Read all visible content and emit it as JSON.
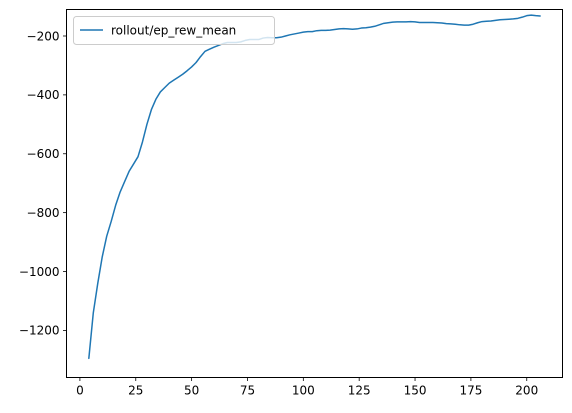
{
  "chart_data": {
    "type": "line",
    "title": "",
    "xlabel": "",
    "ylabel": "",
    "xlim": [
      -6,
      216
    ],
    "ylim": [
      -1360,
      -110
    ],
    "xticks": [
      0,
      25,
      50,
      75,
      100,
      125,
      150,
      175,
      200
    ],
    "yticks": [
      -1200,
      -1000,
      -800,
      -600,
      -400,
      -200
    ],
    "xtick_labels": [
      "0",
      "25",
      "50",
      "75",
      "100",
      "125",
      "150",
      "175",
      "200"
    ],
    "ytick_labels": [
      "−1200",
      "−1000",
      "−800",
      "−600",
      "−400",
      "−200"
    ],
    "grid": false,
    "legend_position": "top-left",
    "series": [
      {
        "name": "rollout/ep_rew_mean",
        "color": "#1f77b4",
        "x": [
          4,
          6,
          8,
          10,
          12,
          14,
          16,
          18,
          20,
          22,
          24,
          26,
          28,
          30,
          32,
          34,
          36,
          38,
          40,
          42,
          44,
          46,
          48,
          50,
          52,
          54,
          56,
          58,
          60,
          62,
          64,
          66,
          68,
          70,
          72,
          74,
          76,
          78,
          80,
          82,
          84,
          86,
          88,
          90,
          92,
          94,
          96,
          98,
          100,
          102,
          104,
          106,
          108,
          110,
          112,
          114,
          116,
          118,
          120,
          122,
          124,
          126,
          128,
          130,
          132,
          134,
          136,
          138,
          140,
          142,
          144,
          146,
          148,
          150,
          152,
          154,
          156,
          158,
          160,
          162,
          164,
          166,
          168,
          170,
          172,
          174,
          176,
          178,
          180,
          182,
          184,
          186,
          188,
          190,
          192,
          194,
          196,
          198,
          200,
          202,
          204,
          206
        ],
        "y": [
          -1295,
          -1140,
          -1040,
          -950,
          -880,
          -830,
          -775,
          -730,
          -695,
          -660,
          -635,
          -610,
          -560,
          -500,
          -450,
          -415,
          -390,
          -375,
          -360,
          -350,
          -340,
          -330,
          -318,
          -305,
          -290,
          -270,
          -252,
          -245,
          -238,
          -232,
          -226,
          -222,
          -222,
          -222,
          -220,
          -215,
          -212,
          -212,
          -212,
          -207,
          -205,
          -206,
          -206,
          -204,
          -200,
          -196,
          -193,
          -190,
          -187,
          -185,
          -185,
          -182,
          -181,
          -181,
          -180,
          -178,
          -176,
          -175,
          -176,
          -177,
          -176,
          -173,
          -172,
          -170,
          -167,
          -162,
          -157,
          -155,
          -153,
          -152,
          -152,
          -152,
          -151,
          -152,
          -154,
          -154,
          -154,
          -154,
          -155,
          -156,
          -158,
          -159,
          -160,
          -162,
          -163,
          -163,
          -160,
          -155,
          -151,
          -150,
          -149,
          -147,
          -145,
          -144,
          -143,
          -142,
          -140,
          -136,
          -131,
          -129,
          -131,
          -132
        ]
      }
    ]
  }
}
